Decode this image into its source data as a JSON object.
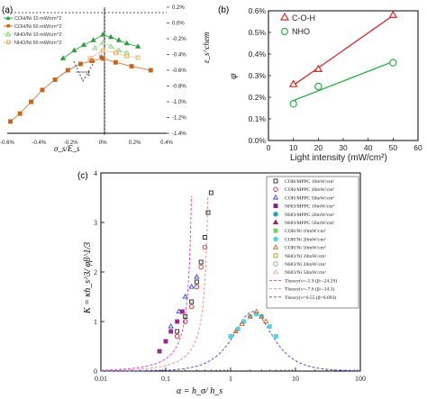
{
  "colors": {
    "coh10": "#2e9e3e",
    "coh50": "#c8641e",
    "nho10": "#8ecf7e",
    "nho50": "#e6a85a",
    "coh_b": "#d22a2a",
    "nho_b": "#2fae48",
    "theory1": "#e033e0",
    "theory2": "#f08a80",
    "theory3": "#4444cc"
  },
  "panel_a": {
    "label": "(a)",
    "xlabel": "σ_s/E_s",
    "ylabel": "ε_s^chem",
    "legend": [
      "COH/Ni 10 mW/cm^2",
      "COH/Ni 50 mW/cm^2",
      "NHO/Ni 10 mW/cm^2",
      "NHO/Ni 50 mW/cm^2"
    ],
    "annotation_phi": "φ",
    "annotation_one": "1"
  },
  "panel_b": {
    "label": "(b)",
    "xlabel": "Light intensity (mW/cm²)",
    "ylabel": "φ",
    "legend": [
      "C-O-H",
      "NHO"
    ]
  },
  "panel_c": {
    "label": "(c)",
    "xlabel": "α = h_σ/ h_s",
    "ylabel": "K = κh_s^3/ φβ^1/3",
    "legend": [
      "COH/MPPC 10mW/cm²",
      "COH/MPPC 20mW/cm²",
      "COH/MPPC 50mW/cm²",
      "NHO/MPPC 10mW/cm²",
      "NHO/MPPC 20mW/cm²",
      "NHO/MPPC 50mW/cm²",
      "COH/Ni 10mW/cm²",
      "COH/Ni 20mW/cm²",
      "COH/Ni 50mW/cm²",
      "NHO/Ni 10mW/cm²",
      "NHO/Ni 20mW/cm²",
      "NHO/Ni 50mW/cm²",
      "Theory(ν=-5.9 (β=-24.29)",
      "Theory(ν=-7.6 (β=-34.3)",
      "Theory(ν=0.55 (β=0.093)"
    ]
  },
  "chart_data": [
    {
      "type": "scatter",
      "panel": "a",
      "xlim": [
        -0.006,
        0.004
      ],
      "ylim": [
        -0.014,
        0.002
      ],
      "x_ticks": [
        "-0.6%",
        "-0.4%",
        "-0.2%",
        "0%",
        "0.2%",
        "0.4%"
      ],
      "x_tick_values": [
        -0.006,
        -0.004,
        -0.002,
        0,
        0.002,
        0.004
      ],
      "y_ticks": [
        "0.2%",
        "0.0%",
        "-0.2%",
        "-0.4%",
        "-0.6%",
        "-0.8%",
        "-1.0%",
        "-1.2%",
        "-1.4%"
      ],
      "y_tick_values": [
        0.002,
        0,
        -0.002,
        -0.004,
        -0.006,
        -0.008,
        -0.01,
        -0.012,
        -0.014
      ],
      "series": [
        {
          "name": "COH/Ni 10 mW/cm^2",
          "x": [
            -0.0025,
            -0.0018,
            -0.0012,
            -0.0006,
            0.0,
            0.0005,
            0.001,
            0.0015,
            0.0022
          ],
          "y": [
            -0.0045,
            -0.0035,
            -0.0028,
            -0.0022,
            -0.0015,
            -0.0018,
            -0.0022,
            -0.0026,
            -0.003
          ]
        },
        {
          "name": "COH/Ni 50 mW/cm^2",
          "x": [
            -0.0058,
            -0.0052,
            -0.0045,
            -0.0038,
            -0.003,
            -0.0022,
            -0.0014,
            -0.0007,
            0.0,
            0.0008,
            0.0018,
            0.003
          ],
          "y": [
            -0.0125,
            -0.0115,
            -0.01,
            -0.0085,
            -0.0072,
            -0.006,
            -0.0052,
            -0.0048,
            -0.0045,
            -0.005,
            -0.0055,
            -0.006
          ]
        },
        {
          "name": "NHO/Ni 10 mW/cm^2",
          "x": [
            -0.0005,
            0.0,
            0.0005,
            0.001,
            0.0015
          ],
          "y": [
            -0.0032,
            -0.0025,
            -0.003,
            -0.0035,
            -0.0038
          ]
        },
        {
          "name": "NHO/Ni 50 mW/cm^2",
          "x": [
            -0.0008,
            0.0,
            0.0008,
            0.0015,
            0.0022
          ],
          "y": [
            -0.0045,
            -0.0035,
            -0.0038,
            -0.0042,
            -0.0044
          ]
        }
      ]
    },
    {
      "type": "line",
      "panel": "b",
      "xlim": [
        0,
        60
      ],
      "ylim": [
        0,
        0.6
      ],
      "x_ticks": [
        "0",
        "10",
        "20",
        "30",
        "40",
        "50",
        "60"
      ],
      "x_tick_values": [
        0,
        10,
        20,
        30,
        40,
        50,
        60
      ],
      "y_ticks": [
        "0.0%",
        "0.1%",
        "0.2%",
        "0.3%",
        "0.4%",
        "0.5%",
        "0.6%"
      ],
      "y_tick_values": [
        0,
        0.1,
        0.2,
        0.3,
        0.4,
        0.5,
        0.6
      ],
      "series": [
        {
          "name": "C-O-H",
          "x": [
            10,
            20,
            50
          ],
          "y": [
            0.26,
            0.33,
            0.58
          ]
        },
        {
          "name": "NHO",
          "x": [
            10,
            20,
            50
          ],
          "y": [
            0.17,
            0.25,
            0.36
          ]
        }
      ]
    },
    {
      "type": "scatter",
      "panel": "c",
      "x_scale": "log",
      "xlim": [
        0.01,
        100
      ],
      "ylim": [
        0,
        4
      ],
      "x_ticks": [
        "0.01",
        "0.1",
        "1",
        "10",
        "100"
      ],
      "x_tick_values": [
        0.01,
        0.1,
        1,
        10,
        100
      ],
      "y_ticks": [
        "0",
        "1",
        "2",
        "3",
        "4"
      ],
      "y_tick_values": [
        0,
        1,
        2,
        3,
        4
      ],
      "series": [
        {
          "name": "COH/MPPC 10mW/cm²",
          "x": [
            0.15,
            0.2,
            0.25,
            0.3,
            0.35,
            0.4,
            0.45,
            0.5
          ],
          "y": [
            0.8,
            1.1,
            1.4,
            1.8,
            2.2,
            2.7,
            3.2,
            3.6
          ]
        },
        {
          "name": "COH/MPPC 20mW/cm²",
          "x": [
            0.15,
            0.2,
            0.25,
            0.3,
            0.35,
            0.4
          ],
          "y": [
            0.7,
            1.0,
            1.3,
            1.7,
            2.1,
            2.5
          ]
        },
        {
          "name": "COH/MPPC 50mW/cm²",
          "x": [
            0.12,
            0.16,
            0.2,
            0.25,
            0.3
          ],
          "y": [
            0.9,
            1.2,
            1.5,
            1.7,
            1.9
          ]
        },
        {
          "name": "NHO/MPPC 10mW/cm²",
          "x": [
            0.08,
            0.1,
            0.12,
            0.15,
            0.18
          ],
          "y": [
            0.4,
            0.6,
            0.8,
            1.0,
            1.2
          ]
        },
        {
          "name": "NHO/Ni 10mW/cm²",
          "x": [
            1.0,
            1.3,
            1.6,
            2.0,
            2.5,
            3.0,
            4.0,
            5.0
          ],
          "y": [
            0.7,
            0.85,
            1.0,
            1.1,
            1.15,
            1.1,
            0.9,
            0.7
          ]
        },
        {
          "name": "COH/Ni 50mW/cm²",
          "x": [
            1.2,
            1.5,
            2.0,
            2.5,
            3.0,
            3.5
          ],
          "y": [
            0.8,
            0.95,
            1.1,
            1.2,
            1.1,
            1.0
          ]
        }
      ]
    }
  ]
}
